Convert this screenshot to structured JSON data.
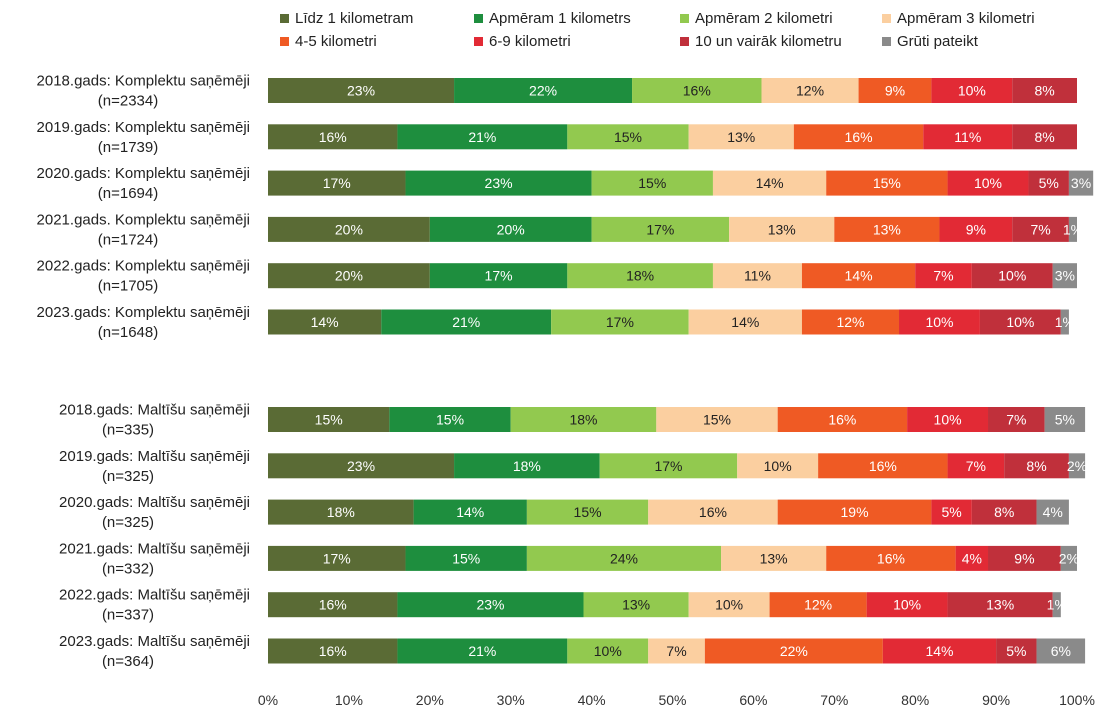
{
  "chart_data": {
    "type": "bar",
    "orientation": "horizontal",
    "stacked": true,
    "xlim": [
      0,
      100
    ],
    "x_ticks": [
      "0%",
      "10%",
      "20%",
      "30%",
      "40%",
      "50%",
      "60%",
      "70%",
      "80%",
      "90%",
      "100%"
    ],
    "legend_placement": "top",
    "series": [
      {
        "name": "Līdz 1 kilometram",
        "color": "#5a6b35"
      },
      {
        "name": "Apmēram 1 kilometrs",
        "color": "#1e8e3e"
      },
      {
        "name": "Apmēram 2 kilometri",
        "color": "#92c94f"
      },
      {
        "name": "Apmēram 3 kilometri",
        "color": "#fbcfa0"
      },
      {
        "name": "4-5 kilometri",
        "color": "#ef5a24"
      },
      {
        "name": "6-9 kilometri",
        "color": "#e22a35"
      },
      {
        "name": "10 un vairāk kilometru",
        "color": "#c0303b"
      },
      {
        "name": "Grūti pateikt",
        "color": "#8a8a8a"
      }
    ],
    "groups": [
      {
        "rows": [
          {
            "label1": "2018.gads: Komplektu saņēmēji",
            "label2": "(n=2334)",
            "values": [
              23,
              22,
              16,
              12,
              9,
              10,
              8,
              0
            ]
          },
          {
            "label1": "2019.gads: Komplektu saņēmēji",
            "label2": "(n=1739)",
            "values": [
              16,
              21,
              15,
              13,
              16,
              11,
              8,
              0
            ]
          },
          {
            "label1": "2020.gads: Komplektu saņēmēji",
            "label2": "(n=1694)",
            "values": [
              17,
              23,
              15,
              14,
              15,
              10,
              5,
              3
            ]
          },
          {
            "label1": "2021.gads. Komplektu saņēmēji",
            "label2": "(n=1724)",
            "values": [
              20,
              20,
              17,
              13,
              13,
              9,
              7,
              1
            ]
          },
          {
            "label1": "2022.gads: Komplektu saņēmēji",
            "label2": "(n=1705)",
            "values": [
              20,
              17,
              18,
              11,
              14,
              7,
              10,
              3
            ]
          },
          {
            "label1": "2023.gads: Komplektu saņēmēji",
            "label2": "(n=1648)",
            "values": [
              14,
              21,
              17,
              14,
              12,
              10,
              10,
              1
            ]
          }
        ]
      },
      {
        "rows": [
          {
            "label1": "2018.gads: Maltīšu saņēmēji",
            "label2": "(n=335)",
            "values": [
              15,
              15,
              18,
              15,
              16,
              10,
              7,
              5
            ]
          },
          {
            "label1": "2019.gads: Maltīšu saņēmēji",
            "label2": "(n=325)",
            "values": [
              23,
              18,
              17,
              10,
              16,
              7,
              8,
              2
            ]
          },
          {
            "label1": "2020.gads: Maltīšu saņēmēji",
            "label2": "(n=325)",
            "values": [
              18,
              14,
              15,
              16,
              19,
              5,
              8,
              4
            ]
          },
          {
            "label1": "2021.gads: Maltīšu saņēmēji",
            "label2": "(n=332)",
            "values": [
              17,
              15,
              24,
              13,
              16,
              4,
              9,
              2
            ]
          },
          {
            "label1": "2022.gads: Maltīšu saņēmēji",
            "label2": "(n=337)",
            "values": [
              16,
              23,
              13,
              10,
              12,
              10,
              13,
              1
            ]
          },
          {
            "label1": "2023.gads: Maltīšu saņēmēji",
            "label2": "(n=364)",
            "values": [
              16,
              21,
              10,
              7,
              22,
              14,
              5,
              6
            ]
          }
        ]
      }
    ]
  }
}
